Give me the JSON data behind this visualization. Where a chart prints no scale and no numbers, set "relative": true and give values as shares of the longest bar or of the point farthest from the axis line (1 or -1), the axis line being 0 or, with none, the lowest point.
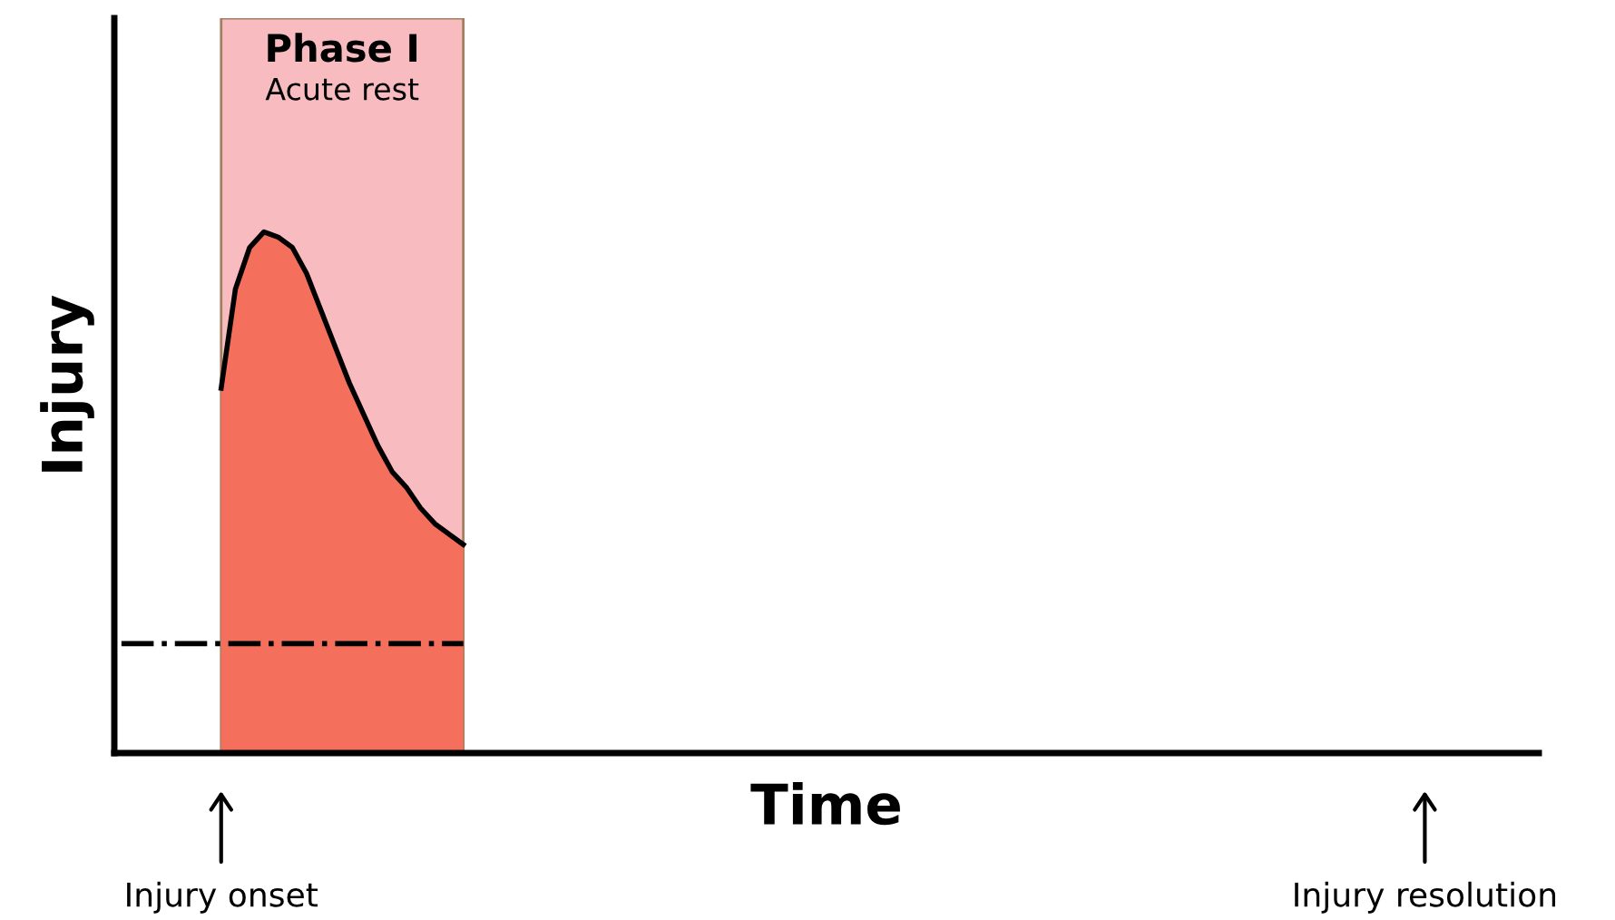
{
  "chart_data": {
    "type": "area",
    "relative": true,
    "xlabel": "Time",
    "ylabel": "Injury",
    "categories": [
      null,
      null,
      null,
      null,
      null,
      null,
      null,
      null,
      null,
      null,
      null,
      null,
      null,
      null,
      null,
      null,
      null,
      null,
      null,
      null,
      null,
      null,
      null,
      null,
      null,
      null,
      null,
      null,
      null,
      null,
      null,
      null,
      null,
      null,
      null,
      null,
      null,
      null,
      null,
      null,
      null,
      null,
      null,
      null,
      null,
      null,
      null,
      null,
      null,
      null,
      null,
      null,
      null,
      null,
      null,
      null,
      null,
      null,
      null,
      null,
      null,
      null,
      null,
      null,
      null,
      null,
      null,
      null,
      null,
      null,
      null,
      null,
      null,
      null,
      null,
      null,
      null,
      null,
      null,
      null,
      null,
      null,
      null,
      null,
      null,
      null,
      null,
      null,
      null,
      null,
      null,
      null,
      null,
      null,
      null,
      null,
      null,
      null,
      null,
      null
    ],
    "series": [
      {
        "color": "#f4705c",
        "values": [
          null,
          null,
          null,
          null,
          null,
          null,
          null,
          0.7,
          0.89,
          0.97,
          1.0,
          0.99,
          0.97,
          0.92,
          0.85,
          0.78,
          0.71,
          0.65,
          0.59,
          0.54,
          0.51,
          0.47,
          0.44,
          0.42,
          0.4,
          null,
          null,
          null,
          null,
          null,
          null,
          null,
          null,
          null,
          null,
          null,
          null,
          null,
          null,
          null,
          null,
          null,
          null,
          null,
          null,
          null,
          null,
          null,
          null,
          null,
          null,
          null,
          null,
          null,
          null,
          null,
          null,
          null,
          null,
          null,
          null,
          null,
          null,
          null,
          null,
          null,
          null,
          null,
          null,
          null,
          null,
          null,
          null,
          null,
          null,
          null,
          null,
          null,
          null,
          null,
          null,
          null,
          null,
          null,
          null,
          null,
          null,
          null,
          null,
          null,
          null,
          null,
          null,
          null,
          null,
          null,
          null,
          null,
          null,
          null
        ]
      },
      {
        "type": "line",
        "color": "#000000",
        "line_style": "dashdot",
        "values": [
          0.21,
          0.21,
          0.21,
          0.21,
          0.21,
          0.21,
          0.21,
          0.21,
          0.21,
          0.21,
          0.21,
          0.21,
          0.21,
          0.21,
          0.21,
          0.21,
          0.21,
          0.21,
          0.21,
          0.21,
          0.21,
          0.21,
          0.21,
          0.21,
          0.21,
          null,
          null,
          null,
          null,
          null,
          null,
          null,
          null,
          null,
          null,
          null,
          null,
          null,
          null,
          null,
          null,
          null,
          null,
          null,
          null,
          null,
          null,
          null,
          null,
          null,
          null,
          null,
          null,
          null,
          null,
          null,
          null,
          null,
          null,
          null,
          null,
          null,
          null,
          null,
          null,
          null,
          null,
          null,
          null,
          null,
          null,
          null,
          null,
          null,
          null,
          null,
          null,
          null,
          null,
          null,
          null,
          null,
          null,
          null,
          null,
          null,
          null,
          null,
          null,
          null,
          null,
          null,
          null,
          null,
          null,
          null,
          null,
          null,
          null,
          null
        ]
      }
    ],
    "annotations": [
      "Phase I",
      "Acute rest",
      "Injury onset",
      "Injury resolution"
    ],
    "legend": false,
    "grid": false
  }
}
